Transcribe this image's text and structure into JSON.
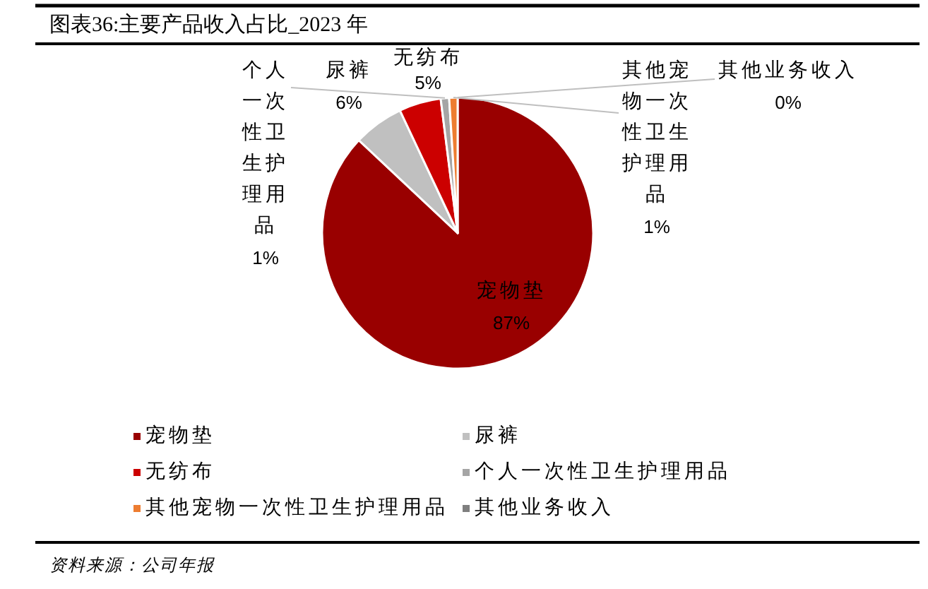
{
  "chart_data": {
    "type": "pie",
    "title": "图表36:主要产品收入占比_2023 年",
    "categories": [
      "宠物垫",
      "尿裤",
      "无纺布",
      "个人一次性卫生护理用品",
      "其他宠物一次性卫生护理用品",
      "其他业务收入"
    ],
    "values": [
      87,
      6,
      5,
      1,
      1,
      0
    ],
    "colors": [
      "#990000",
      "#c0c0c0",
      "#cc0000",
      "#a5a5a5",
      "#ed7d31",
      "#7f7f7f"
    ],
    "value_labels": [
      "87%",
      "6%",
      "5%",
      "1%",
      "1%",
      "0%"
    ],
    "legend": "bottom",
    "annotations": [
      "资料来源：公司年报"
    ]
  }
}
